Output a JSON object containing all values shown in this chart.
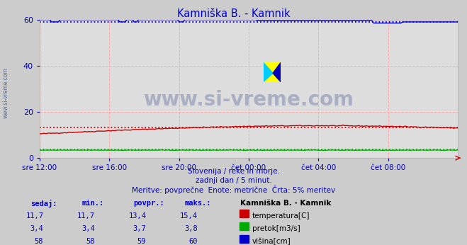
{
  "title": "Kamniška B. - Kamnik",
  "title_color": "#0000cc",
  "bg_color": "#cccccc",
  "plot_bg_color": "#dddddd",
  "fig_width": 6.59,
  "fig_height": 3.46,
  "dpi": 100,
  "ylim": [
    0,
    60
  ],
  "yticks": [
    0,
    20,
    40,
    60
  ],
  "grid_color": "#ffaaaa",
  "watermark_text": "www.si-vreme.com",
  "watermark_color": "#334488",
  "watermark_alpha": 0.3,
  "watermark_fontsize": 20,
  "sub_text1": "Slovenija / reke in morje.",
  "sub_text2": "zadnji dan / 5 minut.",
  "sub_text3": "Meritve: povprečne  Enote: metrične  Črta: 5% meritev",
  "sub_color": "#0000aa",
  "sub_fontsize": 7.5,
  "xtick_labels": [
    "sre 12:00",
    "sre 16:00",
    "sre 20:00",
    "čet 00:00",
    "čet 04:00",
    "čet 08:00"
  ],
  "xtick_positions": [
    0,
    48,
    96,
    144,
    192,
    240
  ],
  "n_points": 289,
  "temp_color": "#cc0000",
  "pretok_color": "#00aa00",
  "visina_color": "#0000cc",
  "avg_temp": 13.4,
  "avg_pretok": 3.7,
  "avg_visina": 59,
  "tick_color": "#0000aa",
  "tick_fontsize": 7.5,
  "ytick_fontsize": 8,
  "side_label": "www.si-vreme.com",
  "side_label_color": "#334488",
  "side_label_fontsize": 5.5,
  "table_headers": [
    "sedaj:",
    "min.:",
    "povpr.:",
    "maks.:"
  ],
  "table_header_color": "#0000cc",
  "table_station": "Kamniška B. - Kamnik",
  "table_station_color": "#000000",
  "table_data": [
    [
      "11,7",
      "11,7",
      "13,4",
      "15,4"
    ],
    [
      "3,4",
      "3,4",
      "3,7",
      "3,8"
    ],
    [
      "58",
      "58",
      "59",
      "60"
    ]
  ],
  "legend_labels": [
    "temperatura[C]",
    "pretok[m3/s]",
    "višina[cm]"
  ],
  "legend_colors": [
    "#cc0000",
    "#00aa00",
    "#0000cc"
  ],
  "table_num_color": "#0000aa",
  "table_fontsize": 7.5,
  "logo_colors": [
    "#ffff00",
    "#00ccff",
    "#0000bb"
  ],
  "arrow_color": "#cc0000"
}
